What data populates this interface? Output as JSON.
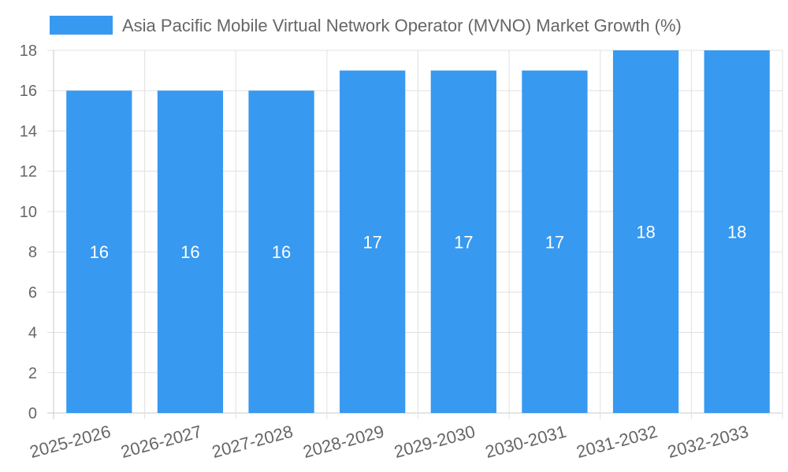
{
  "chart_data": {
    "type": "bar",
    "title": "",
    "xlabel": "",
    "ylabel": "",
    "legend_position": "top",
    "ylim": [
      0,
      18
    ],
    "ytick_step": 2,
    "categories": [
      "2025-2026",
      "2026-2027",
      "2027-2028",
      "2028-2029",
      "2029-2030",
      "2030-2031",
      "2031-2032",
      "2032-2033"
    ],
    "series": [
      {
        "name": "Asia Pacific Mobile Virtual Network Operator (MVNO) Market Growth (%)",
        "values": [
          16,
          16,
          16,
          17,
          17,
          17,
          18,
          18
        ],
        "color": "#3899f0"
      }
    ],
    "data_labels": [
      "16",
      "16",
      "16",
      "17",
      "17",
      "17",
      "18",
      "18"
    ]
  }
}
